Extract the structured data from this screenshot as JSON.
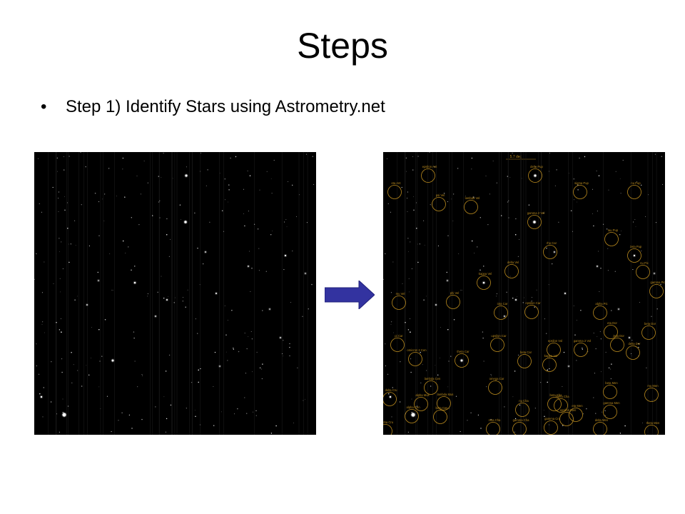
{
  "slide": {
    "title": "Steps",
    "bullet_glyph": "•",
    "bullets": [
      "Step 1) Identify Stars using Astrometry.net"
    ]
  },
  "images": {
    "raw_field": {
      "description_label": "",
      "scale_label": ""
    },
    "annotated_field": {
      "scale_label": "5.7 deg"
    }
  },
  "arrow": {
    "color": "#3333a0",
    "icon": "right-arrow-icon"
  },
  "annotation_color": "#b98a1e",
  "star_labels": [
    "epsilon Ant",
    "delta Pup",
    "eta Ant",
    "sigma Pup",
    "nu Pup",
    "psi Vel",
    "lambda Vel",
    "gamma 2 Vel",
    "tau Pup",
    "rho Car",
    "zeta Pup",
    "delta Vel",
    "kappa Vel",
    "nu Pic",
    "mu Vel",
    "phi Vel",
    "iota Car",
    "epsilon Car",
    "alpha Pic",
    "gamma Pic",
    "beta Dor",
    "pi Car",
    "upsilon Car",
    "zeta Dor",
    "eta Dor",
    "omicron 2 Cen",
    "theta Car",
    "beta Car",
    "kappa Vol",
    "delta Dor",
    "epsilon Vol",
    "gamma 2 Vol",
    "lambda Cen",
    "omega Car",
    "beta Men",
    "delta Cru",
    "alpha Cha",
    "mu Men",
    "alpha Cen",
    "beta Cen",
    "gamma Cru",
    "nu Cha",
    "epsilon Men",
    "gamma Men",
    "beta Cha",
    "gamma Cha",
    "eta Men",
    "delta Men",
    "alpha Cru",
    "zeta Cha",
    "theta Men",
    "alpha Mus",
    "lambda Mus"
  ]
}
